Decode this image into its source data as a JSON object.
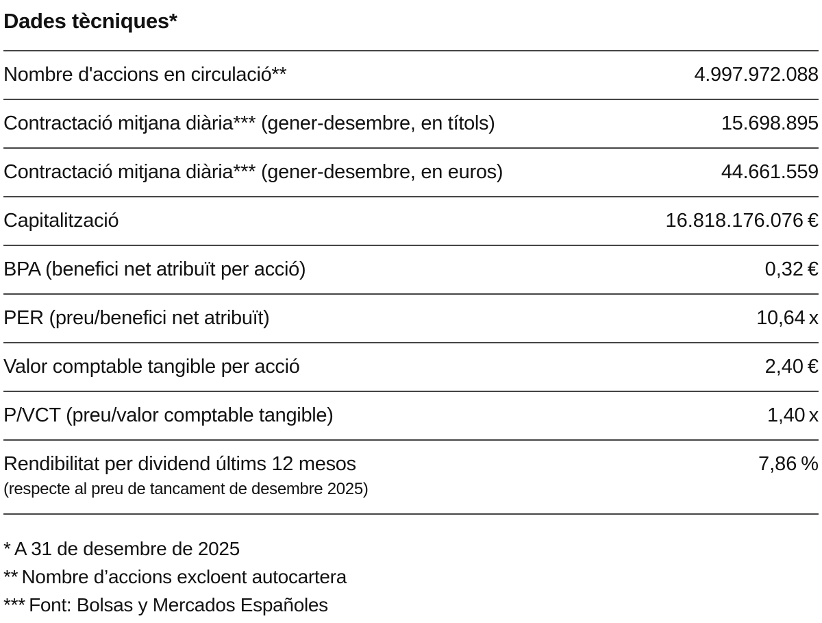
{
  "title": "Dades tècniques*",
  "table": {
    "rows": [
      {
        "label": "Nombre d'accions en circulació**",
        "sublabel": "",
        "value": "4.997.972.088"
      },
      {
        "label": "Contractació mitjana diària*** (gener-desembre, en títols)",
        "sublabel": "",
        "value": "15.698.895"
      },
      {
        "label": "Contractació mitjana diària*** (gener-desembre, en euros)",
        "sublabel": "",
        "value": "44.661.559"
      },
      {
        "label": "Capitalització",
        "sublabel": "",
        "value": "16.818.176.076 €"
      },
      {
        "label": "BPA (benefici net atribuït per acció)",
        "sublabel": "",
        "value": "0,32 €"
      },
      {
        "label": "PER (preu/benefici net atribuït)",
        "sublabel": "",
        "value": "10,64 x"
      },
      {
        "label": "Valor comptable tangible per acció",
        "sublabel": "",
        "value": "2,40 €"
      },
      {
        "label": "P/VCT (preu/valor comptable tangible)",
        "sublabel": "",
        "value": "1,40 x"
      },
      {
        "label": "Rendibilitat per dividend últims 12 mesos",
        "sublabel": "(respecte al preu de tancament de desembre 2025)",
        "value": "7,86 %"
      }
    ]
  },
  "footnotes": [
    "* A 31 de desembre de 2025",
    "** Nombre d’accions excloent autocartera",
    "*** Font: Bolsas y Mercados Españoles"
  ]
}
